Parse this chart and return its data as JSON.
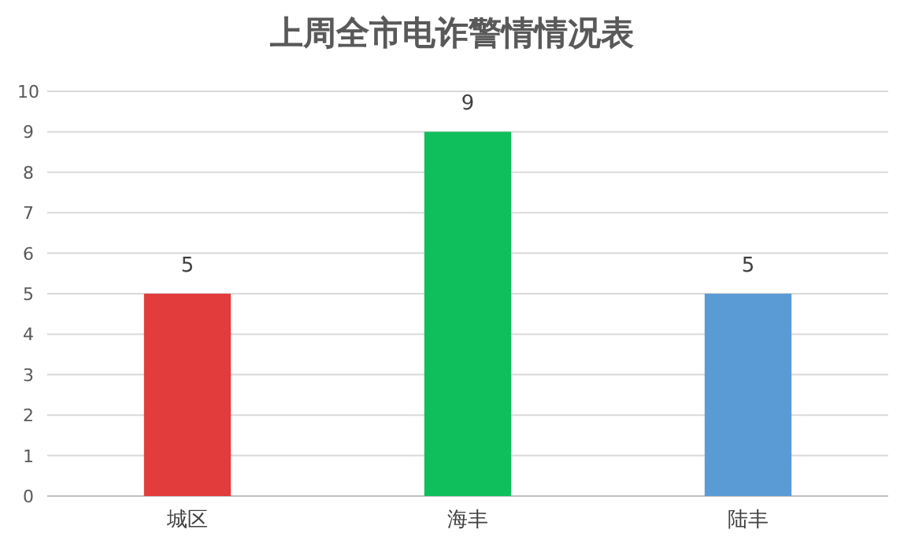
{
  "chart_data": {
    "type": "bar",
    "title": "上周全市电诈警情情况表",
    "categories": [
      "城区",
      "海丰",
      "陆丰"
    ],
    "values": [
      5,
      9,
      5
    ],
    "colors": [
      "#e23c3c",
      "#0fbf5c",
      "#5b9bd5"
    ],
    "ylim": [
      0,
      10
    ],
    "yticks": [
      0,
      1,
      2,
      3,
      4,
      5,
      6,
      7,
      8,
      9,
      10
    ],
    "grid": "y",
    "data_labels": true
  }
}
